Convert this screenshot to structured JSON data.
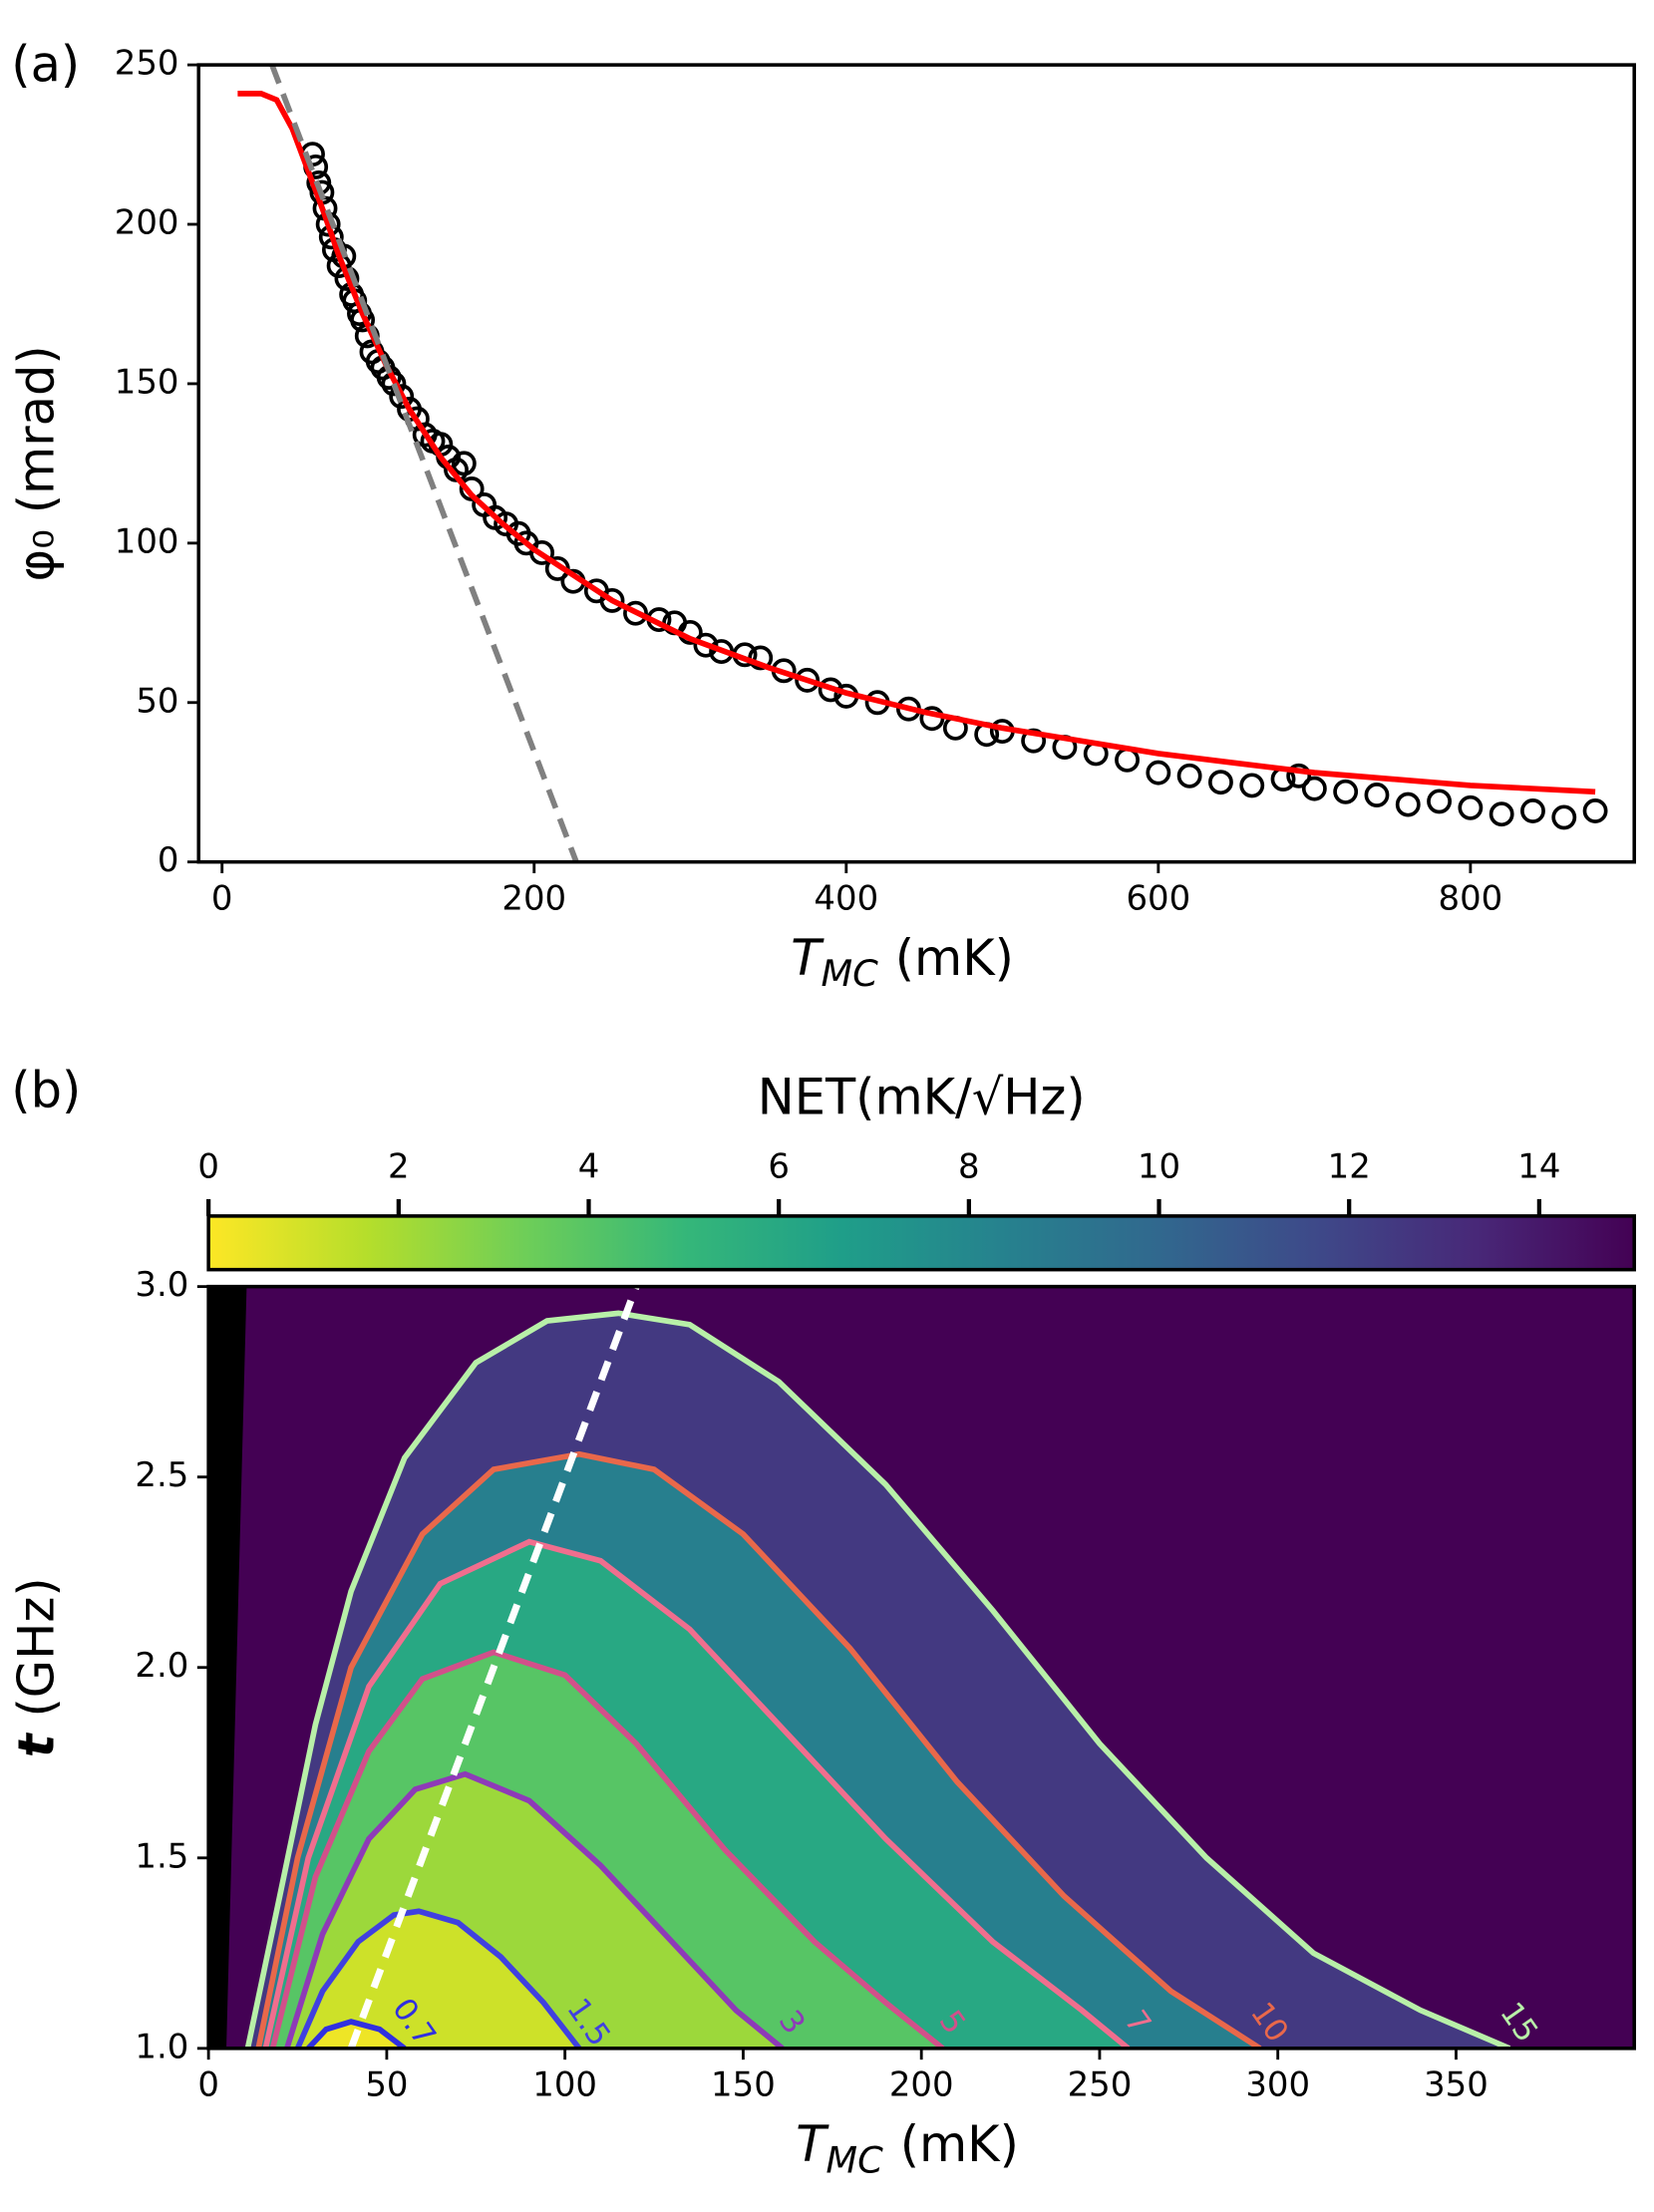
{
  "chart_data": [
    {
      "type": "scatter",
      "panel_label": "(a)",
      "xlabel": "T",
      "xlabel_subscript": "MC",
      "xlabel_unit": "(mK)",
      "ylabel": "φ₀ (mrad)",
      "xlim": [
        -15,
        905
      ],
      "ylim": [
        0,
        250
      ],
      "xticks": [
        0,
        200,
        400,
        600,
        800
      ],
      "yticks": [
        0,
        50,
        100,
        150,
        200,
        250
      ],
      "series": [
        {
          "kind": "markers",
          "color": "#000000",
          "x": [
            58,
            60,
            62,
            64,
            66,
            68,
            70,
            72,
            75,
            78,
            80,
            83,
            85,
            88,
            90,
            93,
            96,
            100,
            103,
            107,
            110,
            115,
            120,
            125,
            130,
            135,
            140,
            145,
            150,
            155,
            160,
            168,
            175,
            182,
            190,
            195,
            205,
            215,
            225,
            240,
            250,
            265,
            280,
            290,
            300,
            310,
            320,
            335,
            345,
            360,
            375,
            390,
            400,
            420,
            440,
            455,
            470,
            490,
            500,
            520,
            540,
            560,
            580,
            600,
            620,
            640,
            660,
            680,
            690,
            700,
            720,
            740,
            760,
            780,
            800,
            820,
            840,
            860,
            880
          ],
          "values": [
            222,
            218,
            213,
            210,
            205,
            200,
            196,
            192,
            187,
            190,
            183,
            178,
            176,
            172,
            170,
            165,
            160,
            157,
            155,
            152,
            150,
            146,
            142,
            139,
            134,
            132,
            131,
            127,
            123,
            125,
            117,
            112,
            108,
            106,
            103,
            100,
            97,
            92,
            88,
            85,
            82,
            78,
            76,
            75,
            72,
            68,
            66,
            65,
            64,
            60,
            57,
            54,
            52,
            50,
            48,
            45,
            42,
            40,
            41,
            38,
            36,
            34,
            32,
            28,
            27,
            25,
            24,
            26,
            27,
            23,
            22,
            21,
            18,
            19,
            17,
            15,
            16,
            14,
            16
          ]
        },
        {
          "kind": "line",
          "color": "#ff0000",
          "x": [
            10,
            25,
            35,
            45,
            55,
            65,
            75,
            90,
            105,
            120,
            140,
            160,
            180,
            200,
            250,
            300,
            350,
            400,
            450,
            500,
            550,
            600,
            650,
            700,
            750,
            800,
            880
          ],
          "values": [
            241,
            241,
            239,
            230,
            217,
            204,
            190,
            172,
            156,
            142,
            127,
            115,
            106,
            98,
            82,
            70,
            61,
            53,
            47,
            42,
            38,
            34,
            31,
            28,
            26,
            24,
            22
          ]
        },
        {
          "kind": "dashed-line",
          "color": "#808080",
          "x": [
            32,
            227
          ],
          "values": [
            250,
            0
          ]
        }
      ]
    },
    {
      "type": "contour",
      "panel_label": "(b)",
      "xlabel": "T",
      "xlabel_subscript": "MC",
      "xlabel_unit": "(mK)",
      "ylabel": "t",
      "ylabel_unit": "(GHz)",
      "xlim": [
        0,
        400
      ],
      "ylim": [
        1,
        3
      ],
      "xticks": [
        0,
        50,
        100,
        150,
        200,
        250,
        300,
        350
      ],
      "yticks": [
        {
          "value": 1,
          "label": "1.0"
        },
        1.5,
        {
          "value": 2,
          "label": "2.0"
        },
        2.5,
        {
          "value": 3,
          "label": "3.0"
        }
      ],
      "colorbar": {
        "label": "NET(mK/√Hz)",
        "lim": [
          0,
          15
        ],
        "ticks": [
          0,
          2,
          4,
          6,
          8,
          10,
          12,
          14
        ],
        "colormap": [
          "#fde725",
          "#b5de2b",
          "#6ece58",
          "#35b779",
          "#1f9e89",
          "#26828e",
          "#31688e",
          "#3e4989",
          "#482878",
          "#440154"
        ]
      },
      "background_color": "#440154",
      "masked_region": {
        "color": "#000000",
        "x": [
          0,
          5,
          10.7,
          0
        ],
        "y": [
          1,
          1,
          3,
          3
        ]
      },
      "guide_line": {
        "color": "#ffffff",
        "x": [
          40,
          120
        ],
        "y": [
          1,
          3
        ]
      },
      "contours": [
        {
          "level": 15,
          "color": "#b8f0a8",
          "x": [
            11,
            20,
            30,
            40,
            55,
            75,
            95,
            115,
            135,
            160,
            190,
            220,
            250,
            280,
            310,
            340,
            365
          ],
          "values": [
            1.0,
            1.4,
            1.85,
            2.2,
            2.55,
            2.8,
            2.91,
            2.93,
            2.9,
            2.75,
            2.48,
            2.15,
            1.8,
            1.5,
            1.25,
            1.1,
            1.0
          ]
        },
        {
          "level": 10,
          "color": "#e9684a",
          "x": [
            14,
            25,
            40,
            60,
            80,
            104,
            125,
            150,
            180,
            210,
            240,
            270,
            295
          ],
          "values": [
            1.0,
            1.5,
            2.0,
            2.35,
            2.52,
            2.56,
            2.52,
            2.35,
            2.05,
            1.7,
            1.4,
            1.15,
            1.0
          ]
        },
        {
          "level": 7,
          "color": "#f06e8e",
          "x": [
            16,
            28,
            45,
            65,
            90,
            110,
            135,
            160,
            190,
            220,
            245,
            258
          ],
          "values": [
            1.0,
            1.5,
            1.95,
            2.22,
            2.33,
            2.28,
            2.1,
            1.85,
            1.55,
            1.28,
            1.1,
            1.0
          ]
        },
        {
          "level": 5,
          "color": "#d2508a",
          "x": [
            18,
            30,
            45,
            60,
            80,
            100,
            120,
            145,
            170,
            190,
            206
          ],
          "values": [
            1.0,
            1.45,
            1.78,
            1.97,
            2.04,
            1.98,
            1.8,
            1.52,
            1.28,
            1.12,
            1.0
          ]
        },
        {
          "level": 3,
          "color": "#8e3ab8",
          "x": [
            22,
            32,
            45,
            58,
            72,
            90,
            110,
            130,
            148,
            161
          ],
          "values": [
            1.0,
            1.3,
            1.55,
            1.68,
            1.72,
            1.65,
            1.48,
            1.28,
            1.1,
            1.0
          ]
        },
        {
          "level": 1.5,
          "color": "#4040e0",
          "x": [
            25,
            32,
            42,
            52,
            59,
            70,
            82,
            94,
            104
          ],
          "values": [
            1.0,
            1.15,
            1.28,
            1.35,
            1.36,
            1.33,
            1.24,
            1.12,
            1.0
          ]
        },
        {
          "level": 0.7,
          "color": "#3030e0",
          "x": [
            28,
            33,
            40,
            48,
            55
          ],
          "values": [
            1.0,
            1.05,
            1.07,
            1.05,
            1.0
          ]
        }
      ]
    }
  ]
}
